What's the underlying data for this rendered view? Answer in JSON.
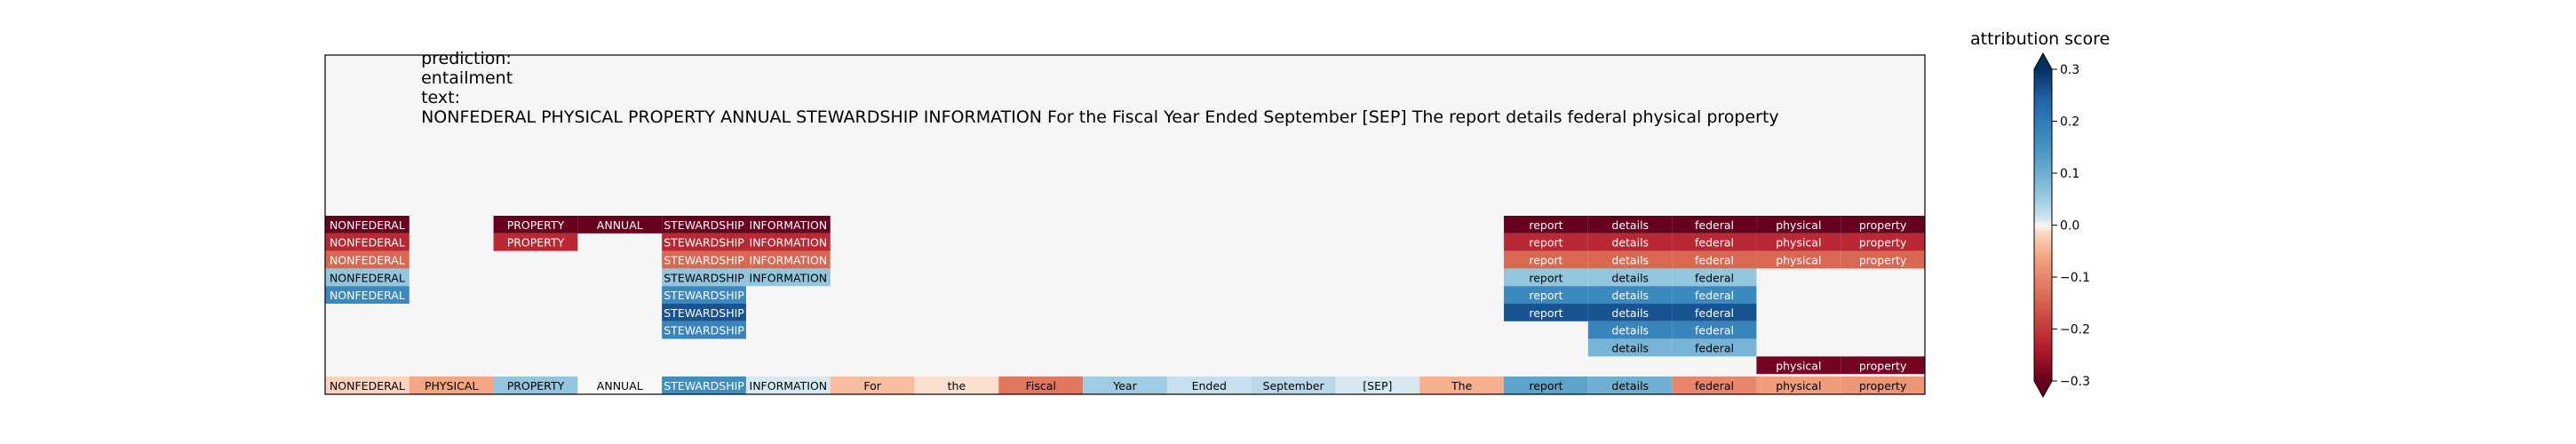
{
  "header": {
    "prediction_label": "prediction:",
    "prediction": "entailment",
    "text_label": "text:",
    "text": "NONFEDERAL PHYSICAL PROPERTY ANNUAL STEWARDSHIP INFORMATION For the Fiscal Year Ended September [SEP] The report details federal physical property"
  },
  "colorbar": {
    "title": "attribution score",
    "ticks": [
      "0.3",
      "0.2",
      "0.1",
      "0.0",
      "−0.1",
      "−0.2",
      "−0.3"
    ],
    "tick_values": [
      0.3,
      0.2,
      0.1,
      0.0,
      -0.1,
      -0.2,
      -0.3
    ]
  },
  "chart_data": {
    "type": "heatmap",
    "title": "",
    "xlabel": "",
    "ylabel": "",
    "value_range": [
      -0.3,
      0.3
    ],
    "colormap": "RdBu",
    "tokens": [
      "NONFEDERAL",
      "PHYSICAL",
      "PROPERTY",
      "ANNUAL",
      "STEWARDSHIP",
      "INFORMATION",
      "For",
      "the",
      "Fiscal",
      "Year",
      "Ended",
      "September",
      "[SEP]",
      "The",
      "report",
      "details",
      "federal",
      "physical",
      "property"
    ],
    "token_scores": [
      -0.02,
      -0.06,
      0.06,
      0.0,
      0.16,
      0.01,
      -0.04,
      -0.01,
      -0.12,
      0.05,
      0.02,
      0.03,
      0.01,
      -0.05,
      0.12,
      0.1,
      -0.1,
      -0.07,
      -0.08
    ],
    "rows": [
      [
        -0.3,
        null,
        -0.31,
        -0.3,
        -0.3,
        -0.3,
        null,
        null,
        null,
        null,
        null,
        null,
        null,
        null,
        -0.3,
        -0.3,
        -0.3,
        -0.3,
        -0.3
      ],
      [
        -0.22,
        null,
        -0.22,
        null,
        -0.22,
        -0.22,
        null,
        null,
        null,
        null,
        null,
        null,
        null,
        null,
        -0.22,
        -0.22,
        -0.22,
        -0.22,
        -0.22
      ],
      [
        -0.14,
        null,
        null,
        null,
        -0.14,
        -0.14,
        null,
        null,
        null,
        null,
        null,
        null,
        null,
        null,
        -0.14,
        -0.14,
        -0.14,
        -0.14,
        -0.14
      ],
      [
        0.06,
        null,
        null,
        null,
        0.06,
        0.06,
        null,
        null,
        null,
        null,
        null,
        null,
        null,
        null,
        0.06,
        0.06,
        0.06,
        null,
        null
      ],
      [
        0.17,
        null,
        null,
        null,
        0.17,
        null,
        null,
        null,
        null,
        null,
        null,
        null,
        null,
        null,
        0.17,
        0.17,
        0.17,
        null,
        null
      ],
      [
        null,
        null,
        null,
        null,
        0.26,
        null,
        null,
        null,
        null,
        null,
        null,
        null,
        null,
        null,
        0.26,
        0.26,
        0.26,
        null,
        null
      ],
      [
        null,
        null,
        null,
        null,
        0.18,
        null,
        null,
        null,
        null,
        null,
        null,
        null,
        null,
        null,
        null,
        0.18,
        0.18,
        null,
        null
      ],
      [
        null,
        null,
        null,
        null,
        null,
        null,
        null,
        null,
        null,
        null,
        null,
        null,
        null,
        null,
        null,
        0.09,
        0.09,
        null,
        null
      ],
      [
        null,
        null,
        null,
        null,
        null,
        null,
        null,
        null,
        null,
        null,
        null,
        null,
        null,
        null,
        null,
        null,
        null,
        -0.29,
        -0.29
      ]
    ]
  }
}
